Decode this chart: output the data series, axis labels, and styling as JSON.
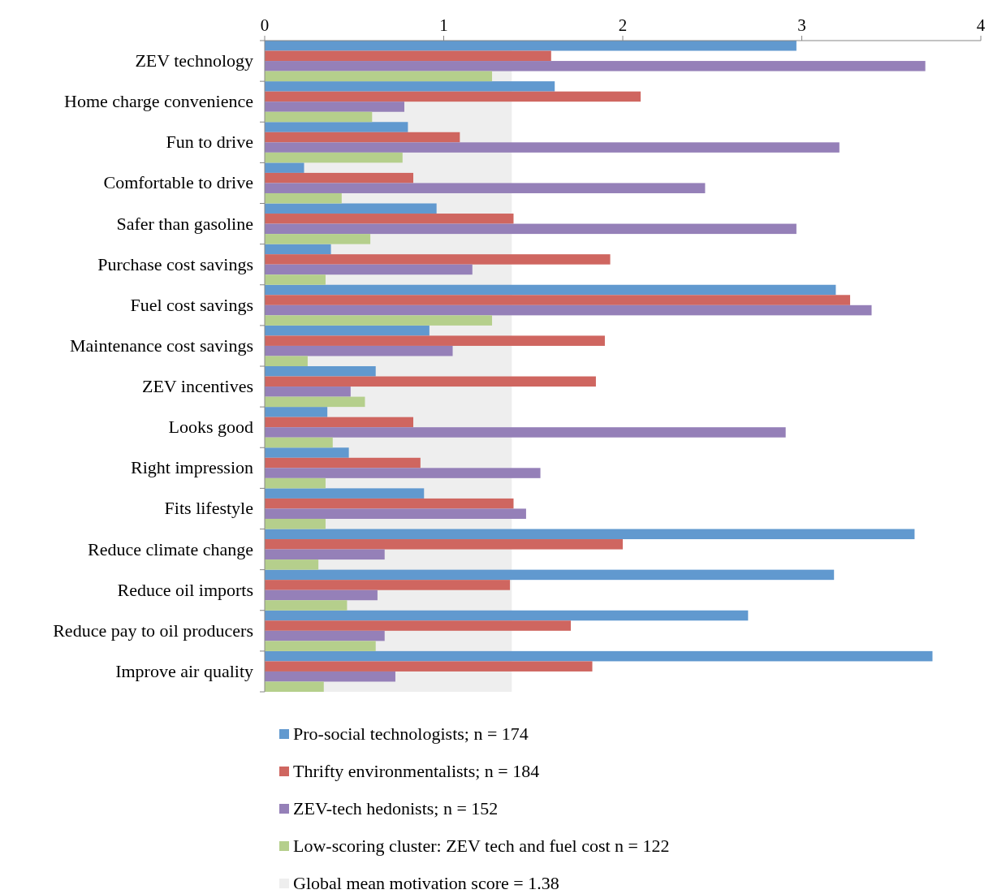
{
  "chart_data": {
    "type": "bar",
    "orientation": "horizontal",
    "categories": [
      "ZEV technology",
      "Home charge convenience",
      "Fun to drive",
      "Comfortable to drive",
      "Safer than gasoline",
      "Purchase cost savings",
      "Fuel cost savings",
      "Maintenance cost savings",
      "ZEV incentives",
      "Looks good",
      "Right impression",
      "Fits lifestyle",
      "Reduce climate change",
      "Reduce oil imports",
      "Reduce pay to oil producers",
      "Improve air quality"
    ],
    "series": [
      {
        "name": "Pro-social technologists; n = 174",
        "color": "#6199cf",
        "values": [
          2.97,
          1.62,
          0.8,
          0.22,
          0.96,
          0.37,
          3.19,
          0.92,
          0.62,
          0.35,
          0.47,
          0.89,
          3.63,
          3.18,
          2.7,
          3.73
        ]
      },
      {
        "name": "Thrifty environmentalists; n = 184",
        "color": "#cf6660",
        "values": [
          1.6,
          2.1,
          1.09,
          0.83,
          1.39,
          1.93,
          3.27,
          1.9,
          1.85,
          0.83,
          0.87,
          1.39,
          2.0,
          1.37,
          1.71,
          1.83
        ]
      },
      {
        "name": "ZEV-tech hedonists; n = 152",
        "color": "#9580b8",
        "values": [
          3.69,
          0.78,
          3.21,
          2.46,
          2.97,
          1.16,
          3.39,
          1.05,
          0.48,
          2.91,
          1.54,
          1.46,
          0.67,
          0.63,
          0.67,
          0.73
        ]
      },
      {
        "name": "Low-scoring cluster: ZEV tech and fuel cost n = 122",
        "color": "#b5cf8c",
        "values": [
          1.27,
          0.6,
          0.77,
          0.43,
          0.59,
          0.34,
          1.27,
          0.24,
          0.56,
          0.38,
          0.34,
          0.34,
          0.3,
          0.46,
          0.62,
          0.33
        ]
      }
    ],
    "xlim": [
      0,
      4
    ],
    "xticks": [
      0,
      1,
      2,
      3,
      4
    ],
    "bands": [
      {
        "axis": "x",
        "from": 0,
        "to": 1.38,
        "label": "Global mean motivation score = 1.38",
        "color": "#eeeeee"
      }
    ],
    "grid": false,
    "legend": "bottom"
  }
}
